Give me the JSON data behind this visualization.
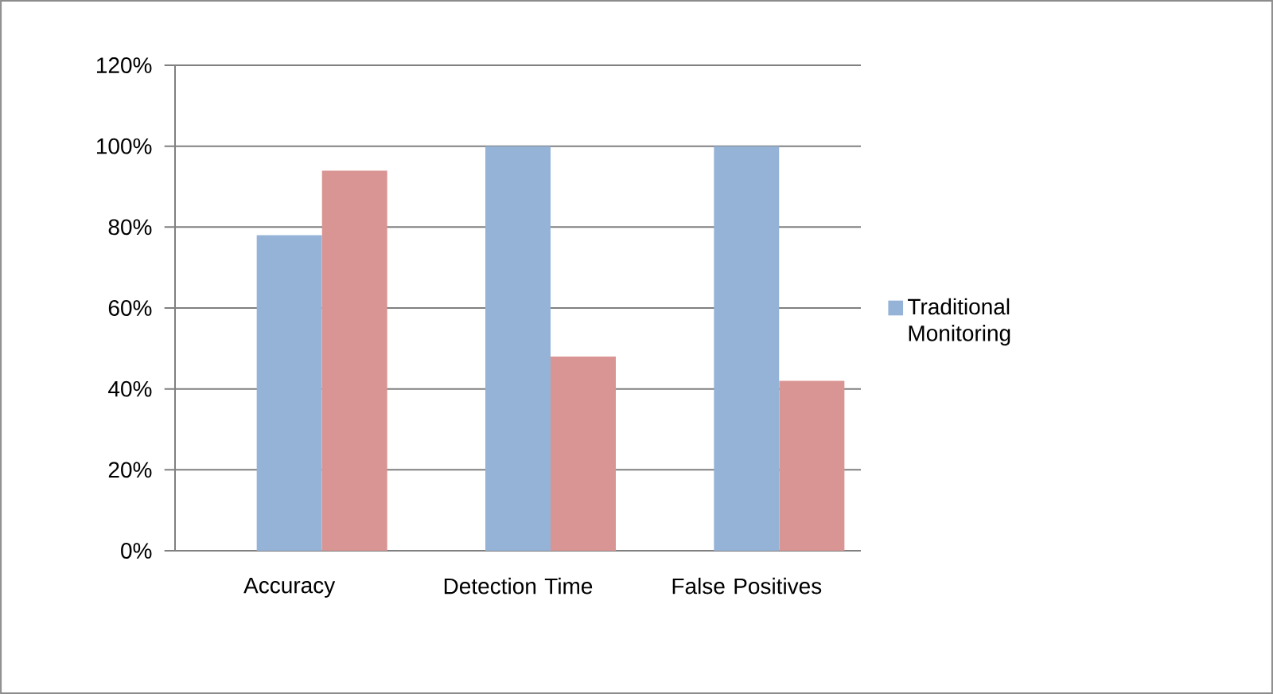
{
  "chart_data": {
    "type": "bar",
    "categories": [
      "Accuracy",
      "Detection Time",
      "False Positives"
    ],
    "series": [
      {
        "name": "Traditional Monitoring",
        "color": "#95b3d7",
        "values": [
          78,
          100,
          100
        ]
      },
      {
        "color": "#d99594",
        "values": [
          94,
          48,
          42
        ]
      }
    ],
    "ylim": [
      0,
      120
    ],
    "yticks": [
      {
        "value": 0,
        "label": "0%"
      },
      {
        "value": 20,
        "label": "20%"
      },
      {
        "value": 40,
        "label": "40%"
      },
      {
        "value": 60,
        "label": "60%"
      },
      {
        "value": 80,
        "label": "80%"
      },
      {
        "value": 100,
        "label": "100%"
      },
      {
        "value": 120,
        "label": "120%"
      }
    ],
    "grid": "y",
    "legend": "right"
  }
}
